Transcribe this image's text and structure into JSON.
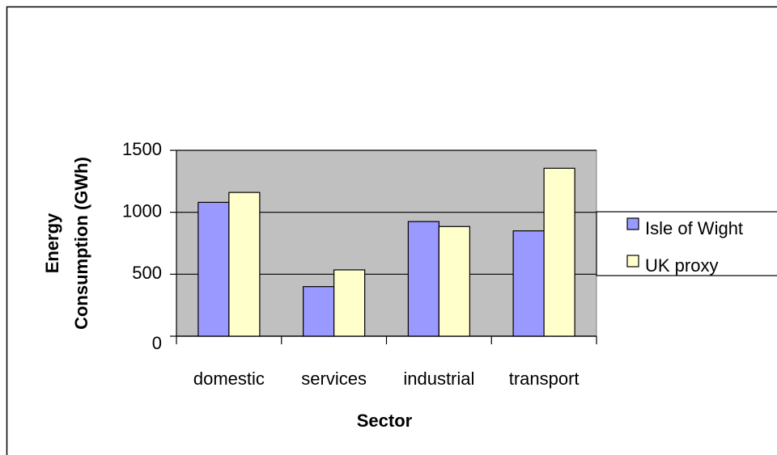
{
  "chart_data": {
    "type": "bar",
    "ylabel": [
      "Energy",
      "Consumption (GWh)"
    ],
    "xlabel": "Sector",
    "categories": [
      "domestic",
      "services",
      "industrial",
      "transport"
    ],
    "series": [
      {
        "name": "Isle of Wight",
        "color": "#9999ff",
        "values": [
          1080,
          400,
          925,
          850
        ]
      },
      {
        "name": "UK proxy",
        "color": "#ffffcc",
        "values": [
          1160,
          535,
          885,
          1355
        ]
      }
    ],
    "ylim": [
      0,
      1500
    ],
    "yticks": [
      0,
      500,
      1000,
      1500
    ],
    "grid": true,
    "legend": "right"
  }
}
